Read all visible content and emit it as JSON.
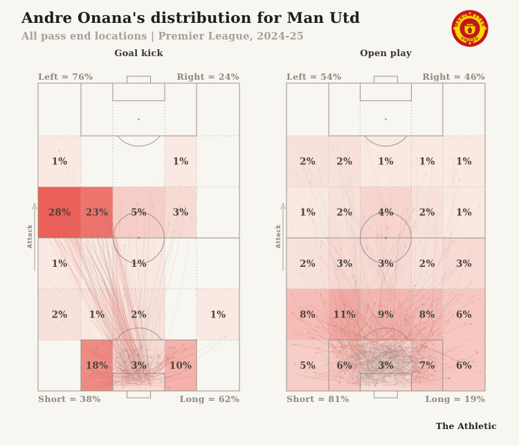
{
  "header": {
    "title": "Andre Onana's distribution for Man Utd",
    "subtitle": "All pass end locations | Premier League, 2024-25",
    "badge_top": "MANCHESTER",
    "badge_bottom": "UNITED"
  },
  "footer": {
    "brand": "The Athletic"
  },
  "style": {
    "background": "#f8f6f0",
    "heat_scale_low": "#fbf3ed",
    "heat_scale_high": "#ec5f58",
    "heat_scale_max_pct": 28,
    "pitch_line": "#96928a",
    "grid_line": "#bab6ac",
    "corner_label_text": "#8e8a80",
    "value_text": "#4a443d",
    "title_text": "#1f1d19",
    "subtitle_text": "#a5a199",
    "pass_gray": "#a8a39a",
    "pass_red": "#d4746c",
    "attack_arrow": "#a19d94",
    "badge_red": "#c2181b",
    "badge_yellow": "#f9d900"
  },
  "chart_data": [
    {
      "type": "heatmap",
      "title": "Goal kick",
      "attack_label": "Attack",
      "annotations": {
        "top_left": "Left = 76%",
        "top_right": "Right = 24%",
        "bottom_left": "Short = 38%",
        "bottom_right": "Long = 62%"
      },
      "grid_note": "5x5 zones, rows listed from opponent half (top) to own goal line (bottom)",
      "values_pct": [
        [
          1,
          null,
          null,
          1,
          null
        ],
        [
          28,
          23,
          5,
          3,
          null
        ],
        [
          1,
          null,
          1,
          null,
          null
        ],
        [
          2,
          1,
          2,
          null,
          1
        ],
        [
          null,
          18,
          3,
          10,
          null
        ]
      ],
      "pass_line_density": 2.2,
      "short_pass_cluster_lines": 45,
      "seed": 42
    },
    {
      "type": "heatmap",
      "title": "Open play",
      "attack_label": "Attack",
      "annotations": {
        "top_left": "Left = 54%",
        "top_right": "Right = 46%",
        "bottom_left": "Short = 81%",
        "bottom_right": "Long = 19%"
      },
      "grid_note": "5x5 zones, rows listed from opponent half (top) to own goal line (bottom)",
      "values_pct": [
        [
          2,
          2,
          1,
          1,
          1
        ],
        [
          1,
          2,
          4,
          2,
          1
        ],
        [
          2,
          3,
          3,
          2,
          3
        ],
        [
          8,
          11,
          9,
          8,
          6
        ],
        [
          5,
          6,
          3,
          7,
          6
        ]
      ],
      "pass_line_density": 3.0,
      "short_pass_cluster_lines": 150,
      "seed": 1337
    }
  ]
}
